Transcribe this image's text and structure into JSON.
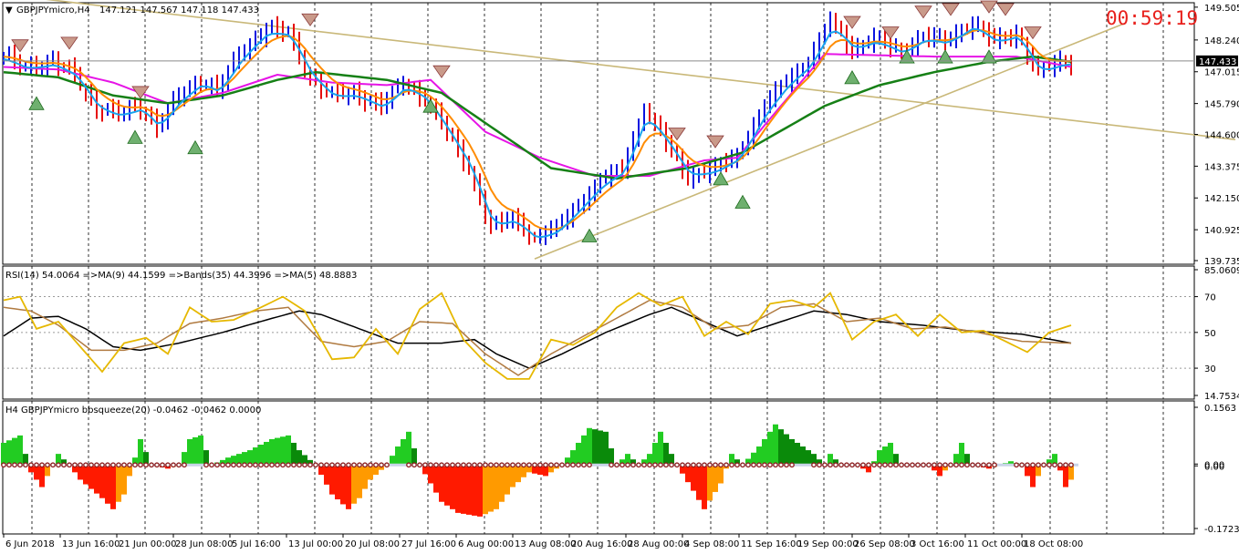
{
  "window": {
    "title": "GBPJPYmicro,H4",
    "ohlc": "147.121 147.567 147.118 147.433",
    "timer": "00:59:19",
    "current_price": "147.433"
  },
  "colors": {
    "bull": "#0a14e0",
    "bear": "#e60c0c",
    "ma_fast": "#1aa3ee",
    "ma_mid": "#ff8c00",
    "ma_magenta": "#e614e6",
    "ma_slow": "#168016",
    "trend": "#c9b879",
    "rsi": "#e6b800",
    "rsi_ma": "#b07a40",
    "bands": "#000000",
    "squeeze_pos_dark": "#0a8a0a",
    "squeeze_pos_light": "#22cc22",
    "squeeze_neg_red": "#ff1a00",
    "squeeze_neg_orange": "#ff9a00"
  },
  "chart_data": [
    {
      "type": "line",
      "name": "price",
      "ylim": [
        139.735,
        149.5
      ],
      "y_ticks": [
        "149.505",
        "148.240",
        "147.015",
        "145.790",
        "144.600",
        "143.375",
        "142.150",
        "140.925",
        "139.735"
      ],
      "x_ticks": [
        "6 Jun 2018",
        "13 Jun 16:00",
        "21 Jun 00:00",
        "28 Jun 08:00",
        "5 Jul 16:00",
        "13 Jul 00:00",
        "20 Jul 08:00",
        "27 Jul 16:00",
        "6 Aug 00:00",
        "13 Aug 08:00",
        "20 Aug 16:00",
        "28 Aug 00:00",
        "4 Sep 08:00",
        "11 Sep 16:00",
        "19 Sep 00:00",
        "26 Sep 08:00",
        "3 Oct 16:00",
        "11 Oct 00:00",
        "18 Oct 08:00"
      ],
      "anchors": [
        [
          0,
          147.6
        ],
        [
          4,
          147.2
        ],
        [
          9,
          147.4
        ],
        [
          13,
          146.9
        ],
        [
          17,
          145.6
        ],
        [
          21,
          145.4
        ],
        [
          25,
          145.7
        ],
        [
          28,
          144.9
        ],
        [
          32,
          146.1
        ],
        [
          36,
          146.7
        ],
        [
          39,
          146.3
        ],
        [
          43,
          147.7
        ],
        [
          48,
          148.7
        ],
        [
          52,
          148.5
        ],
        [
          56,
          146.8
        ],
        [
          60,
          146.1
        ],
        [
          64,
          146.2
        ],
        [
          69,
          145.7
        ],
        [
          73,
          146.6
        ],
        [
          77,
          146.0
        ],
        [
          81,
          144.7
        ],
        [
          85,
          143.3
        ],
        [
          89,
          141.0
        ],
        [
          93,
          141.4
        ],
        [
          97,
          140.6
        ],
        [
          101,
          141.0
        ],
        [
          105,
          141.9
        ],
        [
          109,
          142.8
        ],
        [
          113,
          143.3
        ],
        [
          117,
          145.6
        ],
        [
          121,
          144.3
        ],
        [
          125,
          143.0
        ],
        [
          130,
          143.3
        ],
        [
          134,
          143.8
        ],
        [
          139,
          145.7
        ],
        [
          143,
          146.7
        ],
        [
          147,
          147.4
        ],
        [
          151,
          149.0
        ],
        [
          155,
          147.9
        ],
        [
          159,
          148.3
        ],
        [
          164,
          147.8
        ],
        [
          168,
          148.4
        ],
        [
          172,
          148.2
        ],
        [
          177,
          148.9
        ],
        [
          181,
          148.2
        ],
        [
          185,
          148.5
        ],
        [
          189,
          147.0
        ],
        [
          193,
          147.4
        ],
        [
          195,
          147.43
        ]
      ],
      "trendlines": [
        [
          [
            0,
            150.0
          ],
          [
            225,
            144.4
          ]
        ],
        [
          [
            97,
            139.8
          ],
          [
            205,
            148.9
          ]
        ]
      ],
      "ma_magenta_anchors": [
        [
          0,
          147.2
        ],
        [
          10,
          147.1
        ],
        [
          20,
          146.6
        ],
        [
          30,
          145.8
        ],
        [
          40,
          146.2
        ],
        [
          50,
          146.9
        ],
        [
          60,
          146.6
        ],
        [
          70,
          146.5
        ],
        [
          78,
          146.7
        ],
        [
          88,
          144.7
        ],
        [
          98,
          143.7
        ],
        [
          108,
          143.0
        ],
        [
          118,
          143.0
        ],
        [
          128,
          143.6
        ],
        [
          134,
          143.7
        ],
        [
          150,
          147.7
        ],
        [
          170,
          147.6
        ],
        [
          185,
          147.6
        ],
        [
          195,
          147.2
        ]
      ],
      "ma_slow_anchors": [
        [
          0,
          147.0
        ],
        [
          10,
          146.8
        ],
        [
          20,
          146.1
        ],
        [
          30,
          145.8
        ],
        [
          40,
          146.1
        ],
        [
          50,
          146.7
        ],
        [
          57,
          147.0
        ],
        [
          70,
          146.7
        ],
        [
          80,
          146.2
        ],
        [
          100,
          143.3
        ],
        [
          112,
          142.9
        ],
        [
          125,
          143.3
        ],
        [
          135,
          143.9
        ],
        [
          150,
          145.7
        ],
        [
          160,
          146.5
        ],
        [
          170,
          147.0
        ],
        [
          180,
          147.4
        ],
        [
          188,
          147.6
        ],
        [
          195,
          147.4
        ]
      ],
      "arrows_down": [
        [
          3,
          148.0
        ],
        [
          12,
          148.1
        ],
        [
          25,
          146.2
        ],
        [
          56,
          149.0
        ],
        [
          80,
          147.0
        ],
        [
          123,
          144.6
        ],
        [
          130,
          144.3
        ],
        [
          155,
          148.9
        ],
        [
          162,
          148.5
        ],
        [
          168,
          149.3
        ],
        [
          173,
          149.4
        ],
        [
          180,
          149.5
        ],
        [
          183,
          149.4
        ],
        [
          188,
          148.5
        ]
      ],
      "arrows_up": [
        [
          6,
          145.8
        ],
        [
          24,
          144.5
        ],
        [
          35,
          144.1
        ],
        [
          78,
          145.7
        ],
        [
          107,
          140.7
        ],
        [
          131,
          142.9
        ],
        [
          135,
          142.0
        ],
        [
          155,
          146.8
        ],
        [
          165,
          147.6
        ],
        [
          172,
          147.6
        ],
        [
          180,
          147.6
        ]
      ]
    },
    {
      "type": "line",
      "name": "RSI",
      "label": "RSI(14) 54.0064 =>MA(9) 44.1599 =>Bands(35) 44.3996 =>MA(5) 48.8883",
      "ylim": [
        14.7534,
        85.0609
      ],
      "y_ticks": [
        "85.0609",
        "70",
        "50",
        "30",
        "14.7534"
      ],
      "rsi_anchors": [
        [
          0,
          68
        ],
        [
          3,
          70
        ],
        [
          6,
          52
        ],
        [
          10,
          56
        ],
        [
          14,
          42
        ],
        [
          18,
          28
        ],
        [
          22,
          44
        ],
        [
          26,
          47
        ],
        [
          30,
          38
        ],
        [
          34,
          64
        ],
        [
          38,
          56
        ],
        [
          42,
          57
        ],
        [
          47,
          64
        ],
        [
          51,
          70
        ],
        [
          55,
          62
        ],
        [
          60,
          35
        ],
        [
          64,
          36
        ],
        [
          68,
          52
        ],
        [
          72,
          38
        ],
        [
          76,
          63
        ],
        [
          80,
          72
        ],
        [
          84,
          46
        ],
        [
          88,
          33
        ],
        [
          92,
          24
        ],
        [
          96,
          24
        ],
        [
          100,
          46
        ],
        [
          104,
          43
        ],
        [
          108,
          50
        ],
        [
          112,
          64
        ],
        [
          116,
          72
        ],
        [
          120,
          65
        ],
        [
          124,
          70
        ],
        [
          128,
          48
        ],
        [
          132,
          56
        ],
        [
          136,
          49
        ],
        [
          140,
          66
        ],
        [
          144,
          68
        ],
        [
          148,
          64
        ],
        [
          151,
          72
        ],
        [
          155,
          46
        ],
        [
          159,
          56
        ],
        [
          163,
          60
        ],
        [
          167,
          48
        ],
        [
          171,
          60
        ],
        [
          175,
          50
        ],
        [
          179,
          51
        ],
        [
          183,
          45
        ],
        [
          187,
          39
        ],
        [
          191,
          50
        ],
        [
          195,
          54
        ]
      ],
      "rsi_ma_anchors": [
        [
          0,
          64
        ],
        [
          5,
          62
        ],
        [
          10,
          54
        ],
        [
          16,
          40
        ],
        [
          22,
          40
        ],
        [
          28,
          44
        ],
        [
          34,
          55
        ],
        [
          40,
          58
        ],
        [
          46,
          62
        ],
        [
          52,
          64
        ],
        [
          58,
          45
        ],
        [
          64,
          42
        ],
        [
          70,
          45
        ],
        [
          76,
          56
        ],
        [
          82,
          55
        ],
        [
          88,
          38
        ],
        [
          94,
          26
        ],
        [
          100,
          38
        ],
        [
          106,
          48
        ],
        [
          112,
          58
        ],
        [
          118,
          68
        ],
        [
          124,
          64
        ],
        [
          130,
          52
        ],
        [
          136,
          54
        ],
        [
          142,
          64
        ],
        [
          148,
          66
        ],
        [
          154,
          56
        ],
        [
          160,
          58
        ],
        [
          166,
          52
        ],
        [
          172,
          53
        ],
        [
          178,
          50
        ],
        [
          186,
          45
        ],
        [
          195,
          44
        ]
      ],
      "bands_anchors": [
        [
          0,
          48
        ],
        [
          5,
          58
        ],
        [
          10,
          59
        ],
        [
          15,
          52
        ],
        [
          20,
          42
        ],
        [
          25,
          40
        ],
        [
          32,
          44
        ],
        [
          40,
          50
        ],
        [
          48,
          57
        ],
        [
          54,
          62
        ],
        [
          58,
          60
        ],
        [
          65,
          52
        ],
        [
          72,
          44
        ],
        [
          80,
          44
        ],
        [
          86,
          46
        ],
        [
          90,
          38
        ],
        [
          96,
          30
        ],
        [
          102,
          38
        ],
        [
          110,
          50
        ],
        [
          118,
          60
        ],
        [
          122,
          64
        ],
        [
          128,
          56
        ],
        [
          134,
          48
        ],
        [
          140,
          54
        ],
        [
          148,
          62
        ],
        [
          154,
          60
        ],
        [
          160,
          56
        ],
        [
          168,
          54
        ],
        [
          176,
          51
        ],
        [
          186,
          49
        ],
        [
          195,
          44
        ]
      ]
    },
    {
      "type": "bar",
      "name": "bbsqueeze",
      "label": "H4 GBPJPYmicro bbsqueeze(20) -0.0462 -0.0462 0.0000",
      "ylim": [
        -0.1723,
        0.1563
      ],
      "y_ticks": [
        "0.1563",
        "0.00",
        "0.00",
        "-0.1723"
      ],
      "anchors": [
        [
          0,
          0.06
        ],
        [
          3,
          0.08
        ],
        [
          5,
          -0.02
        ],
        [
          7,
          -0.06
        ],
        [
          9,
          0.0
        ],
        [
          10,
          0.03
        ],
        [
          12,
          0.0
        ],
        [
          14,
          -0.04
        ],
        [
          18,
          -0.09
        ],
        [
          20,
          -0.12
        ],
        [
          22,
          -0.08
        ],
        [
          24,
          0.02
        ],
        [
          25,
          0.07
        ],
        [
          27,
          0.0
        ],
        [
          30,
          -0.01
        ],
        [
          32,
          0.0
        ],
        [
          34,
          0.07
        ],
        [
          36,
          0.08
        ],
        [
          38,
          0.0
        ],
        [
          41,
          0.02
        ],
        [
          45,
          0.04
        ],
        [
          49,
          0.07
        ],
        [
          52,
          0.08
        ],
        [
          54,
          0.04
        ],
        [
          57,
          0.0
        ],
        [
          60,
          -0.08
        ],
        [
          63,
          -0.12
        ],
        [
          65,
          -0.09
        ],
        [
          67,
          -0.04
        ],
        [
          70,
          0.0
        ],
        [
          72,
          0.05
        ],
        [
          74,
          0.09
        ],
        [
          76,
          0.0
        ],
        [
          80,
          -0.1
        ],
        [
          83,
          -0.13
        ],
        [
          87,
          -0.14
        ],
        [
          90,
          -0.12
        ],
        [
          93,
          -0.06
        ],
        [
          96,
          -0.02
        ],
        [
          99,
          -0.03
        ],
        [
          102,
          0.0
        ],
        [
          104,
          0.04
        ],
        [
          107,
          0.1
        ],
        [
          110,
          0.09
        ],
        [
          112,
          0.0
        ],
        [
          114,
          0.03
        ],
        [
          116,
          0.0
        ],
        [
          118,
          0.03
        ],
        [
          120,
          0.09
        ],
        [
          123,
          0.0
        ],
        [
          126,
          -0.07
        ],
        [
          128,
          -0.12
        ],
        [
          131,
          -0.05
        ],
        [
          133,
          0.03
        ],
        [
          135,
          0.0
        ],
        [
          138,
          0.05
        ],
        [
          141,
          0.11
        ],
        [
          144,
          0.07
        ],
        [
          146,
          0.05
        ],
        [
          148,
          0.03
        ],
        [
          150,
          0.0
        ],
        [
          151,
          0.03
        ],
        [
          153,
          0.0
        ],
        [
          156,
          0.0
        ],
        [
          158,
          -0.02
        ],
        [
          160,
          0.04
        ],
        [
          162,
          0.06
        ],
        [
          164,
          0.0
        ],
        [
          167,
          0.0
        ],
        [
          169,
          0.0
        ],
        [
          171,
          -0.03
        ],
        [
          173,
          0.0
        ],
        [
          175,
          0.06
        ],
        [
          177,
          0.0
        ],
        [
          180,
          -0.01
        ],
        [
          184,
          0.01
        ],
        [
          186,
          0.0
        ],
        [
          188,
          -0.06
        ],
        [
          190,
          0.0
        ],
        [
          192,
          0.03
        ],
        [
          194,
          -0.06
        ],
        [
          195,
          -0.04
        ]
      ]
    }
  ]
}
